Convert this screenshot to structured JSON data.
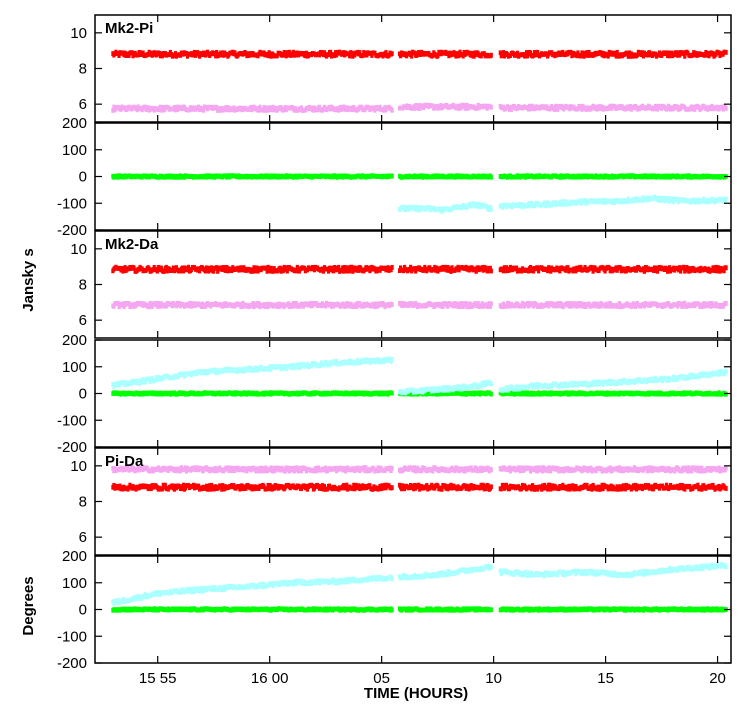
{
  "chart_data": {
    "type": "scatter",
    "xlabel": "TIME (HOURS)",
    "ylabel_amplitude": "Jansky s",
    "ylabel_phase": "Degrees",
    "x_unit": "minutes after 15:00",
    "xlim": [
      52.2,
      80.6
    ],
    "x_ticks": [
      {
        "x": 55,
        "label": "15 55"
      },
      {
        "x": 60,
        "label": "16 00"
      },
      {
        "x": 65,
        "label": "05"
      },
      {
        "x": 70,
        "label": "10"
      },
      {
        "x": 75,
        "label": "15"
      },
      {
        "x": 80,
        "label": "20"
      }
    ],
    "scan_segments": [
      [
        53.0,
        65.5
      ],
      [
        65.8,
        69.9
      ],
      [
        70.3,
        80.4
      ]
    ],
    "colors": {
      "red": "#ff0000",
      "violet": "#f4a6f0",
      "green": "#00ff00",
      "cyan": "#aaffff"
    },
    "baselines": [
      {
        "name": "Mk2-Pi",
        "amplitude": {
          "ylim": [
            5,
            11
          ],
          "ticks": [
            6,
            8,
            10
          ],
          "series": [
            {
              "color": "red",
              "points": [
                [
                  53.0,
                  8.8
                ],
                [
                  80.4,
                  8.8
                ]
              ],
              "spread": 0.12
            },
            {
              "color": "violet",
              "points": [
                [
                  53.0,
                  5.75
                ],
                [
                  65.5,
                  5.75
                ],
                [
                  65.8,
                  5.85
                ],
                [
                  69.9,
                  5.85
                ],
                [
                  70.3,
                  5.8
                ],
                [
                  80.4,
                  5.8
                ]
              ],
              "spread": 0.1
            }
          ]
        },
        "phase": {
          "ylim": [
            -200,
            200
          ],
          "ticks": [
            -200,
            -100,
            0,
            100,
            200
          ],
          "series": [
            {
              "color": "green",
              "points": [
                [
                  53.0,
                  0
                ],
                [
                  80.4,
                  0
                ]
              ],
              "spread": 3
            },
            {
              "color": "cyan",
              "points": [
                [
                  65.8,
                  -120
                ],
                [
                  67.0,
                  -120
                ],
                [
                  67.7,
                  -125
                ],
                [
                  68.5,
                  -115
                ],
                [
                  69.2,
                  -105
                ],
                [
                  69.9,
                  -120
                ],
                [
                  70.3,
                  -110
                ],
                [
                  72.0,
                  -105
                ],
                [
                  73.0,
                  -100
                ],
                [
                  74.0,
                  -95
                ],
                [
                  75.5,
                  -92
                ],
                [
                  77.0,
                  -82
                ],
                [
                  78.5,
                  -92
                ],
                [
                  80.4,
                  -88
                ]
              ],
              "spread": 6
            }
          ]
        }
      },
      {
        "name": "Mk2-Da",
        "amplitude": {
          "ylim": [
            5,
            11
          ],
          "ticks": [
            6,
            8,
            10
          ],
          "series": [
            {
              "color": "red",
              "points": [
                [
                  53.0,
                  8.85
                ],
                [
                  80.4,
                  8.85
                ]
              ],
              "spread": 0.12
            },
            {
              "color": "violet",
              "points": [
                [
                  53.0,
                  6.85
                ],
                [
                  80.4,
                  6.85
                ]
              ],
              "spread": 0.1
            }
          ]
        },
        "phase": {
          "ylim": [
            -200,
            200
          ],
          "ticks": [
            -200,
            -100,
            0,
            100,
            200
          ],
          "series": [
            {
              "color": "green",
              "points": [
                [
                  53.0,
                  0
                ],
                [
                  80.4,
                  0
                ]
              ],
              "spread": 3
            },
            {
              "color": "cyan",
              "points": [
                [
                  53.0,
                  30
                ],
                [
                  55.0,
                  55
                ],
                [
                  57.0,
                  80
                ],
                [
                  59.0,
                  90
                ],
                [
                  61.0,
                  100
                ],
                [
                  63.0,
                  115
                ],
                [
                  65.5,
                  125
                ]
              ],
              "spread": 6
            },
            {
              "color": "cyan",
              "points": [
                [
                  65.8,
                  5
                ],
                [
                  67.5,
                  15
                ],
                [
                  69.0,
                  25
                ],
                [
                  69.9,
                  40
                ]
              ],
              "spread": 6
            },
            {
              "color": "cyan",
              "points": [
                [
                  70.3,
                  15
                ],
                [
                  72.0,
                  30
                ],
                [
                  74.0,
                  35
                ],
                [
                  76.0,
                  45
                ],
                [
                  78.0,
                  55
                ],
                [
                  80.4,
                  80
                ]
              ],
              "spread": 6
            }
          ]
        }
      },
      {
        "name": "Pi-Da",
        "amplitude": {
          "ylim": [
            5,
            11
          ],
          "ticks": [
            6,
            8,
            10
          ],
          "series": [
            {
              "color": "violet",
              "points": [
                [
                  53.0,
                  9.8
                ],
                [
                  80.4,
                  9.8
                ]
              ],
              "spread": 0.1
            },
            {
              "color": "red",
              "points": [
                [
                  53.0,
                  8.8
                ],
                [
                  80.4,
                  8.8
                ]
              ],
              "spread": 0.12
            }
          ]
        },
        "phase": {
          "ylim": [
            -200,
            200
          ],
          "ticks": [
            -200,
            -100,
            0,
            100,
            200
          ],
          "series": [
            {
              "color": "green",
              "points": [
                [
                  53.0,
                  0
                ],
                [
                  80.4,
                  0
                ]
              ],
              "spread": 3
            },
            {
              "color": "cyan",
              "points": [
                [
                  53.0,
                  25
                ],
                [
                  55.0,
                  60
                ],
                [
                  57.0,
                  75
                ],
                [
                  59.0,
                  85
                ],
                [
                  61.0,
                  100
                ],
                [
                  63.0,
                  105
                ],
                [
                  65.5,
                  120
                ],
                [
                  67.5,
                  130
                ],
                [
                  69.9,
                  160
                ],
                [
                  70.3,
                  140
                ],
                [
                  72.0,
                  130
                ],
                [
                  74.0,
                  140
                ],
                [
                  76.0,
                  130
                ],
                [
                  78.0,
                  150
                ],
                [
                  80.4,
                  165
                ]
              ],
              "spread": 6
            }
          ]
        }
      }
    ]
  }
}
